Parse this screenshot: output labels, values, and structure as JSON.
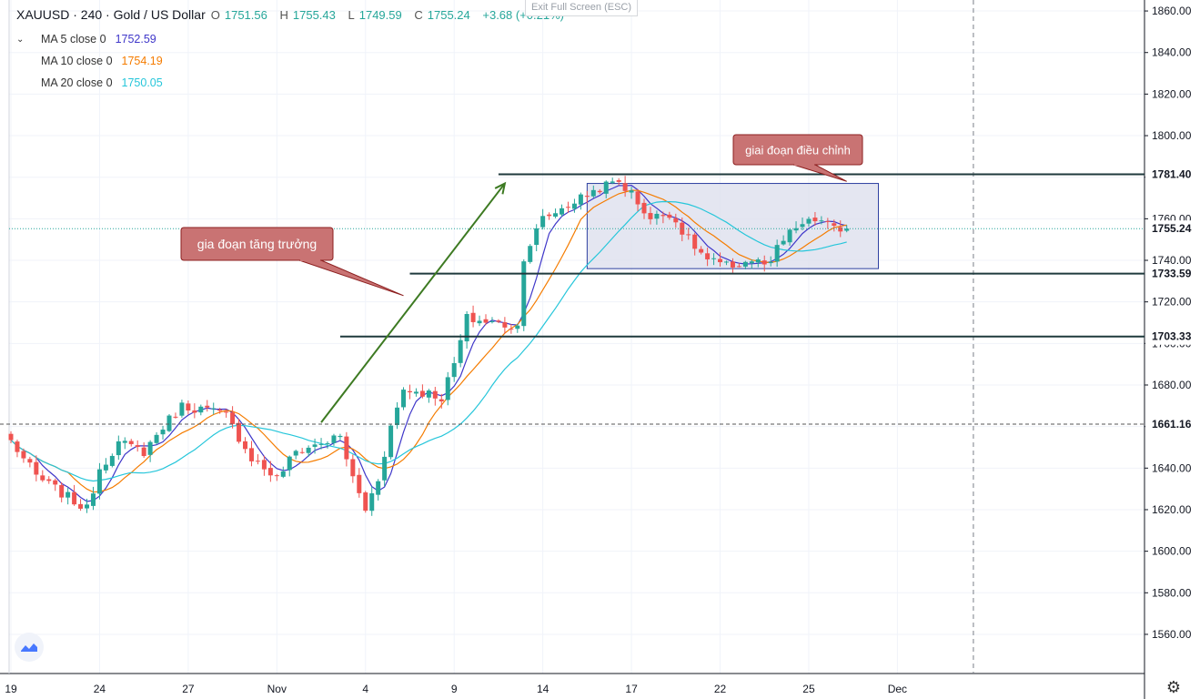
{
  "legend": {
    "symbol": "XAUUSD · 240 · Gold / US Dollar",
    "open_label": "O",
    "open": "1751.56",
    "high_label": "H",
    "high": "1755.43",
    "low_label": "L",
    "low": "1749.59",
    "close_label": "C",
    "close": "1755.24",
    "change": "+3.68 (+0.21%)",
    "ma": [
      {
        "name": "MA 5 close 0",
        "value": "1752.59",
        "color": "#3f37c9"
      },
      {
        "name": "MA 10 close 0",
        "value": "1754.19",
        "color": "#f57c00"
      },
      {
        "name": "MA 20 close 0",
        "value": "1750.05",
        "color": "#26c6da"
      }
    ]
  },
  "exit_fullscreen": "Exit Full Screen (ESC)",
  "colors": {
    "up": "#26a69a",
    "down": "#ef5350",
    "grid": "#f0f3fa",
    "levels": "#1f3a3d",
    "annotation_fill": "#c97373",
    "annotation_border": "#8c1f1f",
    "arrow": "#3d7a22",
    "box_fill": "#dde0ee",
    "box_border": "#2c3fa0"
  },
  "chart_data": {
    "type": "candlestick",
    "symbol": "XAUUSD",
    "timeframe": "240",
    "ylim": [
      1540,
      1865
    ],
    "y_ticks": [
      1560,
      1580,
      1600,
      1620,
      1640,
      1660,
      1680,
      1700,
      1720,
      1740,
      1760,
      1780,
      1800,
      1820,
      1840,
      1860
    ],
    "y_tick_labels": [
      "1560.00",
      "1580.00",
      "1600.00",
      "1620.00",
      "1640.00",
      "1660.00",
      "1680.00",
      "1700.00",
      "1720.00",
      "1740.00",
      "1760.00",
      "1780.00",
      "1800.00",
      "1820.00",
      "1840.00",
      "1860.00"
    ],
    "bar_count": 133,
    "x_labels": [
      {
        "bar": 0,
        "label": "19"
      },
      {
        "bar": 14,
        "label": "24"
      },
      {
        "bar": 28,
        "label": "27"
      },
      {
        "bar": 42,
        "label": "Nov"
      },
      {
        "bar": 56,
        "label": "4"
      },
      {
        "bar": 70,
        "label": "9"
      },
      {
        "bar": 84,
        "label": "14"
      },
      {
        "bar": 98,
        "label": "17"
      },
      {
        "bar": 112,
        "label": "22"
      },
      {
        "bar": 126,
        "label": "25"
      },
      {
        "bar": 140,
        "label": "Dec"
      }
    ],
    "ma_periods": [
      5,
      10,
      20
    ],
    "key_points": [
      [
        0,
        1653
      ],
      [
        4,
        1636
      ],
      [
        8,
        1628
      ],
      [
        12,
        1620
      ],
      [
        14,
        1640
      ],
      [
        17,
        1652
      ],
      [
        21,
        1648
      ],
      [
        24,
        1660
      ],
      [
        27,
        1670
      ],
      [
        31,
        1668
      ],
      [
        34,
        1665
      ],
      [
        38,
        1645
      ],
      [
        42,
        1635
      ],
      [
        45,
        1648
      ],
      [
        49,
        1652
      ],
      [
        52,
        1655
      ],
      [
        54,
        1635
      ],
      [
        56,
        1620
      ],
      [
        58,
        1635
      ],
      [
        60,
        1660
      ],
      [
        62,
        1678
      ],
      [
        66,
        1676
      ],
      [
        68,
        1674
      ],
      [
        70,
        1690
      ],
      [
        72,
        1712
      ],
      [
        76,
        1710
      ],
      [
        80,
        1708
      ],
      [
        81,
        1742
      ],
      [
        84,
        1760
      ],
      [
        87,
        1765
      ],
      [
        90,
        1770
      ],
      [
        93,
        1775
      ],
      [
        96,
        1778
      ],
      [
        98,
        1772
      ],
      [
        101,
        1760
      ],
      [
        104,
        1763
      ],
      [
        107,
        1750
      ],
      [
        110,
        1740
      ],
      [
        113,
        1737
      ],
      [
        117,
        1740
      ],
      [
        120,
        1737
      ],
      [
        121,
        1746
      ],
      [
        124,
        1756
      ],
      [
        128,
        1760
      ],
      [
        131,
        1752
      ],
      [
        132,
        1755.24
      ]
    ],
    "last_close": 1755.24,
    "horizontal_levels": [
      {
        "value": 1781.4,
        "label": "1781.40",
        "from_bar": 77
      },
      {
        "value": 1733.59,
        "label": "1733.59",
        "from_bar": 63
      },
      {
        "value": 1703.33,
        "label": "1703.33",
        "from_bar": 52
      },
      {
        "value": 1661.16,
        "label": "1661.16",
        "from_bar": 0,
        "dashed": true
      }
    ],
    "current_price_label": "1755.24",
    "range_box": {
      "from_bar": 91,
      "to_bar": 137,
      "low": 1736,
      "high": 1777
    },
    "trend_arrow": {
      "from_bar": 49,
      "from_value": 1662,
      "to_bar": 78,
      "to_value": 1777
    },
    "vertical_dashed_bar": 152,
    "annotations": [
      {
        "text": "gia đoạn tăng trưởng",
        "target_bar": 62,
        "target_value": 1723
      },
      {
        "text": "giai đoạn điều chỉnh",
        "target_bar": 132,
        "target_value": 1778
      }
    ]
  }
}
